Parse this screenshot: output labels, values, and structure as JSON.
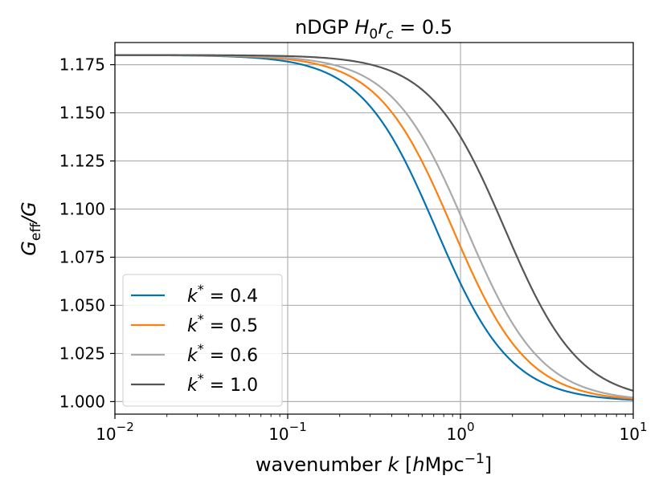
{
  "chart_data": {
    "type": "line",
    "title_prefix": "nDGP ",
    "title_param": "H",
    "title_sub0": "0",
    "title_r": "r",
    "title_sub_c": "c",
    "title_value": " = 0.5",
    "xlabel_prefix": "wavenumber ",
    "xlabel_var": "k",
    "xlabel_unit_pre": " [",
    "xlabel_h": "h",
    "xlabel_unit_main": "Mpc",
    "xlabel_unit_exp": "−1",
    "xlabel_unit_post": "]",
    "ylabel_main": "G",
    "ylabel_sub": "eff",
    "ylabel_rest": "/G",
    "xscale": "log",
    "xlim": [
      0.01,
      10
    ],
    "ylim": [
      0.9935,
      1.1865
    ],
    "x_ticks": [
      {
        "base": "10",
        "exp": "−2",
        "value": 0.01
      },
      {
        "base": "10",
        "exp": "−1",
        "value": 0.1
      },
      {
        "base": "10",
        "exp": "0",
        "value": 1
      },
      {
        "base": "10",
        "exp": "1",
        "value": 10
      }
    ],
    "y_ticks": [
      "1.000",
      "1.025",
      "1.050",
      "1.075",
      "1.100",
      "1.125",
      "1.150",
      "1.175"
    ],
    "y_tick_values": [
      1.0,
      1.025,
      1.05,
      1.075,
      1.1,
      1.125,
      1.15,
      1.175
    ],
    "grid": true,
    "legend_position": "lower-left",
    "model": {
      "g_max": 1.18,
      "g_min": 1.0,
      "transition_scale": 1.8
    },
    "series": [
      {
        "name": "k* = 0.4",
        "label_var": "k",
        "label_sup": "*",
        "label_value": " = 0.4",
        "color": "#0173b2",
        "k_star": 0.4
      },
      {
        "name": "k* = 0.5",
        "label_var": "k",
        "label_sup": "*",
        "label_value": " = 0.5",
        "color": "#ff7f0e",
        "k_star": 0.5
      },
      {
        "name": "k* = 0.6",
        "label_var": "k",
        "label_sup": "*",
        "label_value": " = 0.6",
        "color": "#a9a9a9",
        "k_star": 0.6
      },
      {
        "name": "k* = 1.0",
        "label_var": "k",
        "label_sup": "*",
        "label_value": " = 1.0",
        "color": "#555555",
        "k_star": 1.0
      }
    ]
  }
}
